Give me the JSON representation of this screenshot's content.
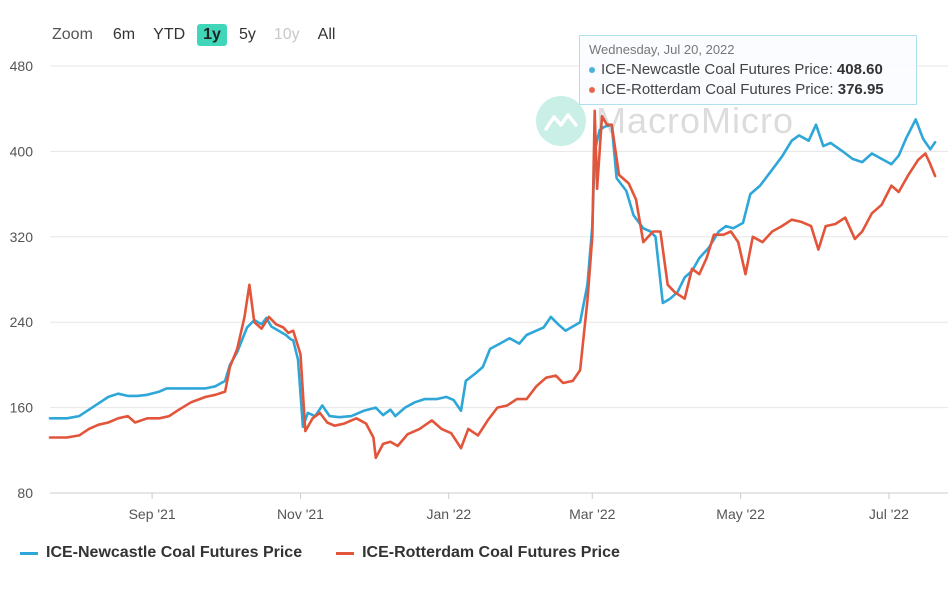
{
  "zoom": {
    "label": "Zoom",
    "buttons": [
      {
        "label": "6m",
        "state": "normal"
      },
      {
        "label": "YTD",
        "state": "normal"
      },
      {
        "label": "1y",
        "state": "active"
      },
      {
        "label": "5y",
        "state": "normal"
      },
      {
        "label": "10y",
        "state": "disabled"
      },
      {
        "label": "All",
        "state": "normal"
      }
    ]
  },
  "tooltip": {
    "date": "Wednesday, Jul 20, 2022",
    "rows": [
      {
        "label": "ICE-Newcastle Coal Futures Price:",
        "value": "408.60",
        "color": "#4ab3d8"
      },
      {
        "label": "ICE-Rotterdam Coal Futures Price:",
        "value": "376.95",
        "color": "#e8674c"
      }
    ]
  },
  "watermark": {
    "text": "MacroMicro"
  },
  "colors": {
    "newcastle": "#2ea7d8",
    "rotterdam": "#e2553a",
    "grid": "#e6e6e6"
  },
  "chart_data": {
    "type": "line",
    "x_axis": {
      "type": "date",
      "start": "2021-07-21",
      "end": "2022-07-22",
      "ticks": [
        {
          "date": "2021-09-01",
          "label": "Sep '21"
        },
        {
          "date": "2021-11-01",
          "label": "Nov '21"
        },
        {
          "date": "2022-01-01",
          "label": "Jan '22"
        },
        {
          "date": "2022-03-01",
          "label": "Mar '22"
        },
        {
          "date": "2022-05-01",
          "label": "May '22"
        },
        {
          "date": "2022-07-01",
          "label": "Jul '22"
        }
      ]
    },
    "y_axis": {
      "min": 80,
      "max": 480,
      "ticks": [
        80,
        160,
        240,
        320,
        400,
        480
      ]
    },
    "grid": true,
    "legend_position": "bottom-left",
    "series": [
      {
        "name": "ICE-Newcastle Coal Futures Price",
        "color": "#2ea7d8",
        "points": [
          [
            "2021-07-21",
            150
          ],
          [
            "2021-07-28",
            150
          ],
          [
            "2021-08-02",
            152
          ],
          [
            "2021-08-06",
            158
          ],
          [
            "2021-08-10",
            164
          ],
          [
            "2021-08-14",
            170
          ],
          [
            "2021-08-18",
            173
          ],
          [
            "2021-08-22",
            171
          ],
          [
            "2021-08-26",
            171
          ],
          [
            "2021-08-30",
            172
          ],
          [
            "2021-09-04",
            175
          ],
          [
            "2021-09-07",
            178
          ],
          [
            "2021-09-12",
            178
          ],
          [
            "2021-09-17",
            178
          ],
          [
            "2021-09-23",
            178
          ],
          [
            "2021-09-27",
            180
          ],
          [
            "2021-10-01",
            185
          ],
          [
            "2021-10-03",
            200
          ],
          [
            "2021-10-06",
            212
          ],
          [
            "2021-10-10",
            235
          ],
          [
            "2021-10-13",
            242
          ],
          [
            "2021-10-16",
            238
          ],
          [
            "2021-10-18",
            244
          ],
          [
            "2021-10-20",
            236
          ],
          [
            "2021-10-23",
            232
          ],
          [
            "2021-10-26",
            228
          ],
          [
            "2021-10-28",
            224
          ],
          [
            "2021-10-29",
            223
          ],
          [
            "2021-10-31",
            205
          ],
          [
            "2021-11-02",
            142
          ],
          [
            "2021-11-04",
            155
          ],
          [
            "2021-11-07",
            152
          ],
          [
            "2021-11-10",
            162
          ],
          [
            "2021-11-13",
            152
          ],
          [
            "2021-11-17",
            151
          ],
          [
            "2021-11-22",
            152
          ],
          [
            "2021-11-27",
            157
          ],
          [
            "2021-12-02",
            160
          ],
          [
            "2021-12-05",
            153
          ],
          [
            "2021-12-08",
            158
          ],
          [
            "2021-12-10",
            152
          ],
          [
            "2021-12-14",
            160
          ],
          [
            "2021-12-18",
            165
          ],
          [
            "2021-12-22",
            168
          ],
          [
            "2021-12-27",
            168
          ],
          [
            "2021-12-31",
            170
          ],
          [
            "2022-01-03",
            167
          ],
          [
            "2022-01-06",
            157
          ],
          [
            "2022-01-08",
            185
          ],
          [
            "2022-01-12",
            192
          ],
          [
            "2022-01-15",
            198
          ],
          [
            "2022-01-18",
            215
          ],
          [
            "2022-01-22",
            220
          ],
          [
            "2022-01-26",
            225
          ],
          [
            "2022-01-30",
            220
          ],
          [
            "2022-02-02",
            228
          ],
          [
            "2022-02-06",
            232
          ],
          [
            "2022-02-09",
            235
          ],
          [
            "2022-02-12",
            245
          ],
          [
            "2022-02-15",
            238
          ],
          [
            "2022-02-18",
            232
          ],
          [
            "2022-02-21",
            236
          ],
          [
            "2022-02-24",
            240
          ],
          [
            "2022-02-27",
            275
          ],
          [
            "2022-03-01",
            330
          ],
          [
            "2022-03-02",
            400
          ],
          [
            "2022-03-04",
            420
          ],
          [
            "2022-03-06",
            423
          ],
          [
            "2022-03-09",
            425
          ],
          [
            "2022-03-11",
            375
          ],
          [
            "2022-03-15",
            363
          ],
          [
            "2022-03-18",
            340
          ],
          [
            "2022-03-22",
            328
          ],
          [
            "2022-03-25",
            325
          ],
          [
            "2022-03-27",
            320
          ],
          [
            "2022-03-30",
            258
          ],
          [
            "2022-04-02",
            262
          ],
          [
            "2022-04-05",
            268
          ],
          [
            "2022-04-08",
            282
          ],
          [
            "2022-04-11",
            288
          ],
          [
            "2022-04-14",
            300
          ],
          [
            "2022-04-18",
            310
          ],
          [
            "2022-04-22",
            325
          ],
          [
            "2022-04-25",
            330
          ],
          [
            "2022-04-28",
            328
          ],
          [
            "2022-05-02",
            333
          ],
          [
            "2022-05-05",
            360
          ],
          [
            "2022-05-09",
            368
          ],
          [
            "2022-05-13",
            380
          ],
          [
            "2022-05-18",
            395
          ],
          [
            "2022-05-22",
            410
          ],
          [
            "2022-05-25",
            415
          ],
          [
            "2022-05-29",
            410
          ],
          [
            "2022-06-01",
            425
          ],
          [
            "2022-06-04",
            405
          ],
          [
            "2022-06-07",
            408
          ],
          [
            "2022-06-12",
            400
          ],
          [
            "2022-06-16",
            393
          ],
          [
            "2022-06-20",
            390
          ],
          [
            "2022-06-24",
            398
          ],
          [
            "2022-06-28",
            393
          ],
          [
            "2022-07-02",
            388
          ],
          [
            "2022-07-05",
            396
          ],
          [
            "2022-07-08",
            412
          ],
          [
            "2022-07-12",
            430
          ],
          [
            "2022-07-15",
            412
          ],
          [
            "2022-07-18",
            402
          ],
          [
            "2022-07-20",
            408.6
          ]
        ]
      },
      {
        "name": "ICE-Rotterdam Coal Futures Price",
        "color": "#e2553a",
        "points": [
          [
            "2021-07-21",
            132
          ],
          [
            "2021-07-28",
            132
          ],
          [
            "2021-08-02",
            134
          ],
          [
            "2021-08-06",
            140
          ],
          [
            "2021-08-10",
            144
          ],
          [
            "2021-08-14",
            146
          ],
          [
            "2021-08-18",
            150
          ],
          [
            "2021-08-22",
            152
          ],
          [
            "2021-08-25",
            146
          ],
          [
            "2021-08-30",
            150
          ],
          [
            "2021-09-04",
            150
          ],
          [
            "2021-09-08",
            152
          ],
          [
            "2021-09-12",
            158
          ],
          [
            "2021-09-17",
            165
          ],
          [
            "2021-09-23",
            170
          ],
          [
            "2021-09-27",
            172
          ],
          [
            "2021-10-01",
            175
          ],
          [
            "2021-10-03",
            198
          ],
          [
            "2021-10-06",
            215
          ],
          [
            "2021-10-09",
            245
          ],
          [
            "2021-10-11",
            275
          ],
          [
            "2021-10-13",
            240
          ],
          [
            "2021-10-16",
            234
          ],
          [
            "2021-10-19",
            245
          ],
          [
            "2021-10-22",
            238
          ],
          [
            "2021-10-25",
            235
          ],
          [
            "2021-10-27",
            230
          ],
          [
            "2021-10-29",
            232
          ],
          [
            "2021-11-01",
            210
          ],
          [
            "2021-11-03",
            138
          ],
          [
            "2021-11-06",
            150
          ],
          [
            "2021-11-09",
            155
          ],
          [
            "2021-11-12",
            146
          ],
          [
            "2021-11-15",
            143
          ],
          [
            "2021-11-19",
            145
          ],
          [
            "2021-11-24",
            150
          ],
          [
            "2021-11-28",
            145
          ],
          [
            "2021-12-01",
            132
          ],
          [
            "2021-12-02",
            113
          ],
          [
            "2021-12-05",
            126
          ],
          [
            "2021-12-08",
            128
          ],
          [
            "2021-12-11",
            124
          ],
          [
            "2021-12-15",
            135
          ],
          [
            "2021-12-20",
            140
          ],
          [
            "2021-12-25",
            148
          ],
          [
            "2021-12-29",
            140
          ],
          [
            "2022-01-02",
            136
          ],
          [
            "2022-01-06",
            122
          ],
          [
            "2022-01-09",
            140
          ],
          [
            "2022-01-13",
            134
          ],
          [
            "2022-01-17",
            148
          ],
          [
            "2022-01-21",
            160
          ],
          [
            "2022-01-25",
            162
          ],
          [
            "2022-01-29",
            168
          ],
          [
            "2022-02-02",
            168
          ],
          [
            "2022-02-06",
            180
          ],
          [
            "2022-02-10",
            188
          ],
          [
            "2022-02-14",
            190
          ],
          [
            "2022-02-17",
            183
          ],
          [
            "2022-02-21",
            185
          ],
          [
            "2022-02-24",
            195
          ],
          [
            "2022-02-27",
            260
          ],
          [
            "2022-03-01",
            320
          ],
          [
            "2022-03-02",
            438
          ],
          [
            "2022-03-03",
            365
          ],
          [
            "2022-03-05",
            433
          ],
          [
            "2022-03-07",
            425
          ],
          [
            "2022-03-09",
            425
          ],
          [
            "2022-03-12",
            378
          ],
          [
            "2022-03-16",
            370
          ],
          [
            "2022-03-19",
            355
          ],
          [
            "2022-03-22",
            315
          ],
          [
            "2022-03-26",
            325
          ],
          [
            "2022-03-29",
            325
          ],
          [
            "2022-04-01",
            275
          ],
          [
            "2022-04-04",
            268
          ],
          [
            "2022-04-08",
            262
          ],
          [
            "2022-04-11",
            290
          ],
          [
            "2022-04-14",
            285
          ],
          [
            "2022-04-17",
            300
          ],
          [
            "2022-04-20",
            322
          ],
          [
            "2022-04-24",
            322
          ],
          [
            "2022-04-27",
            325
          ],
          [
            "2022-04-30",
            315
          ],
          [
            "2022-05-03",
            285
          ],
          [
            "2022-05-06",
            320
          ],
          [
            "2022-05-10",
            315
          ],
          [
            "2022-05-14",
            325
          ],
          [
            "2022-05-18",
            330
          ],
          [
            "2022-05-22",
            336
          ],
          [
            "2022-05-26",
            334
          ],
          [
            "2022-05-30",
            330
          ],
          [
            "2022-06-02",
            308
          ],
          [
            "2022-06-05",
            330
          ],
          [
            "2022-06-09",
            332
          ],
          [
            "2022-06-13",
            338
          ],
          [
            "2022-06-17",
            318
          ],
          [
            "2022-06-20",
            325
          ],
          [
            "2022-06-24",
            342
          ],
          [
            "2022-06-28",
            350
          ],
          [
            "2022-07-02",
            368
          ],
          [
            "2022-07-05",
            362
          ],
          [
            "2022-07-09",
            378
          ],
          [
            "2022-07-13",
            392
          ],
          [
            "2022-07-16",
            398
          ],
          [
            "2022-07-18",
            388
          ],
          [
            "2022-07-20",
            376.95
          ]
        ]
      }
    ]
  }
}
